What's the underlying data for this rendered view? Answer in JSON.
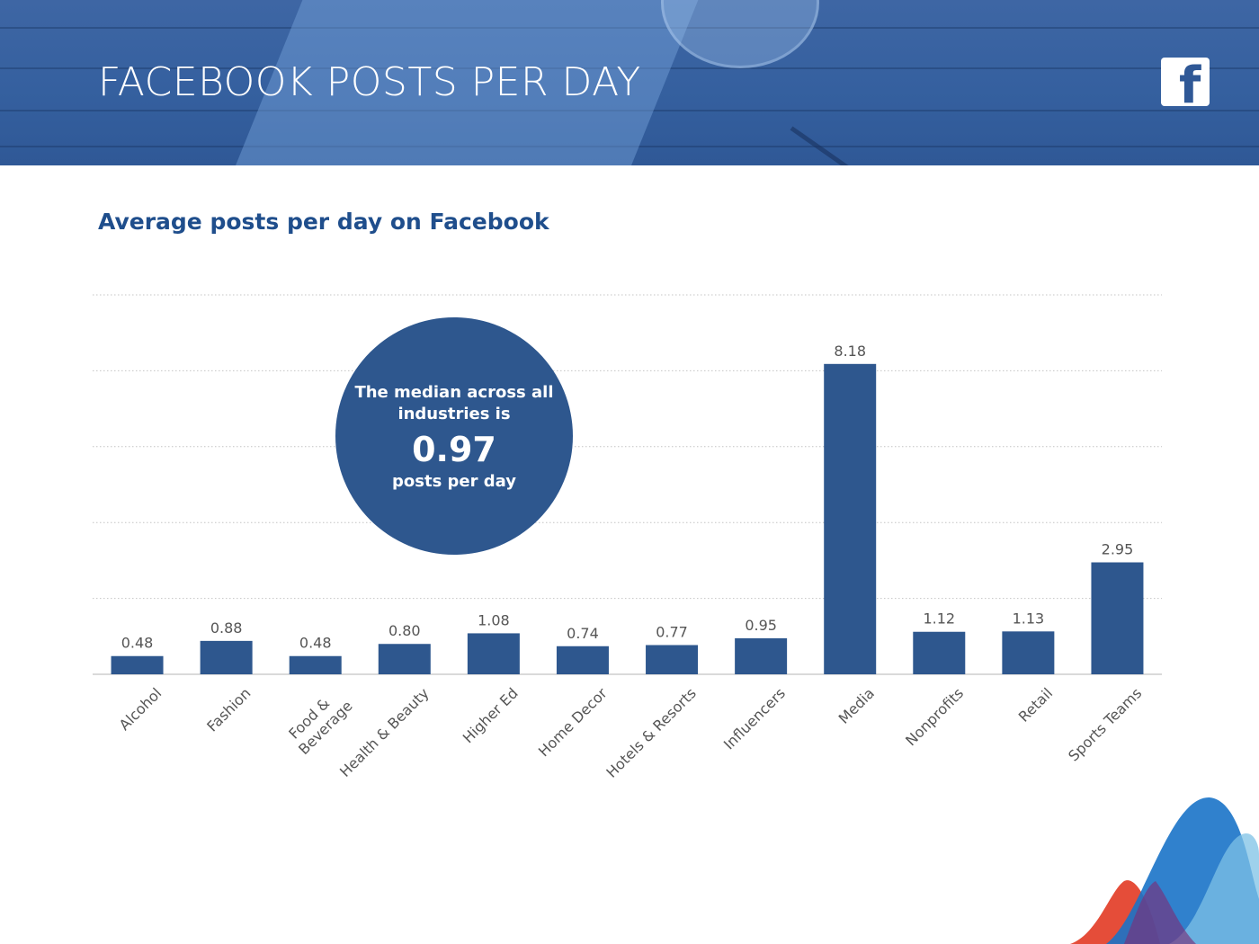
{
  "header": {
    "title": "FACEBOOK POSTS PER DAY",
    "logo_icon": "facebook-logo-icon",
    "logo_letter": "f"
  },
  "callout": {
    "line1": "The median across all industries is",
    "value": "0.97",
    "line2": "posts per day"
  },
  "colors": {
    "bar": "#2e578e",
    "title": "#1f4e8c",
    "header": "#35609f"
  },
  "chart_data": {
    "type": "bar",
    "title": "Average posts per day on Facebook",
    "categories": [
      "Alcohol",
      "Fashion",
      "Food & Beverage",
      "Health & Beauty",
      "Higher Ed",
      "Home Decor",
      "Hotels & Resorts",
      "Influencers",
      "Media",
      "Nonprofits",
      "Retail",
      "Sports Teams"
    ],
    "category_lines": [
      [
        "Alcohol"
      ],
      [
        "Fashion"
      ],
      [
        "Food &",
        "Beverage"
      ],
      [
        "Health & Beauty"
      ],
      [
        "Higher Ed"
      ],
      [
        "Home Decor"
      ],
      [
        "Hotels & Resorts"
      ],
      [
        "Influencers"
      ],
      [
        "Media"
      ],
      [
        "Nonprofits"
      ],
      [
        "Retail"
      ],
      [
        "Sports Teams"
      ]
    ],
    "values": [
      0.48,
      0.88,
      0.48,
      0.8,
      1.08,
      0.74,
      0.77,
      0.95,
      8.18,
      1.12,
      1.13,
      2.95
    ],
    "value_labels": [
      "0.48",
      "0.88",
      "0.48",
      "0.80",
      "1.08",
      "0.74",
      "0.77",
      "0.95",
      "8.18",
      "1.12",
      "1.13",
      "2.95"
    ],
    "ylim": [
      0,
      10
    ],
    "gridlines": [
      2,
      4,
      6,
      8
    ],
    "grid": true,
    "legend": "none"
  }
}
